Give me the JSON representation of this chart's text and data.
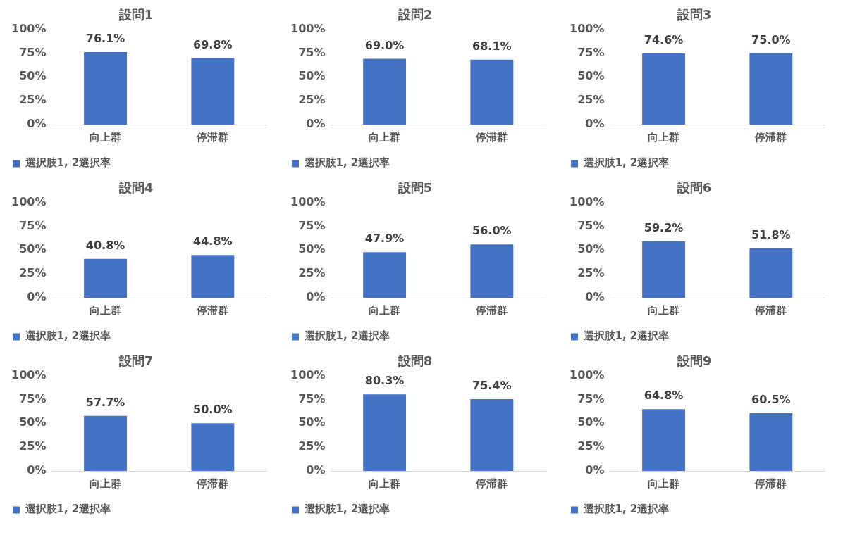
{
  "chart_data": [
    {
      "type": "bar",
      "title": "設問1",
      "categories": [
        "向上群",
        "停滞群"
      ],
      "series": [
        {
          "name": "選択肢1, 2選択率",
          "color": "#4472c4",
          "values": [
            76.1,
            69.8
          ],
          "value_labels": [
            "76.1%",
            "69.8%"
          ]
        }
      ],
      "ylim": [
        0,
        100
      ],
      "yticks": [
        {
          "value": 0,
          "label": "0%"
        },
        {
          "value": 25,
          "label": "25%"
        },
        {
          "value": 50,
          "label": "50%"
        },
        {
          "value": 75,
          "label": "75%"
        },
        {
          "value": 100,
          "label": "100%"
        }
      ],
      "legend": "bottom left",
      "grid": false
    },
    {
      "type": "bar",
      "title": "設問2",
      "categories": [
        "向上群",
        "停滞群"
      ],
      "series": [
        {
          "name": "選択肢1, 2選択率",
          "color": "#4472c4",
          "values": [
            69.0,
            68.1
          ],
          "value_labels": [
            "69.0%",
            "68.1%"
          ]
        }
      ],
      "ylim": [
        0,
        100
      ],
      "yticks": [
        {
          "value": 0,
          "label": "0%"
        },
        {
          "value": 25,
          "label": "25%"
        },
        {
          "value": 50,
          "label": "50%"
        },
        {
          "value": 75,
          "label": "75%"
        },
        {
          "value": 100,
          "label": "100%"
        }
      ],
      "legend": "bottom left",
      "grid": false
    },
    {
      "type": "bar",
      "title": "設問3",
      "categories": [
        "向上群",
        "停滞群"
      ],
      "series": [
        {
          "name": "選択肢1, 2選択率",
          "color": "#4472c4",
          "values": [
            74.6,
            75.0
          ],
          "value_labels": [
            "74.6%",
            "75.0%"
          ]
        }
      ],
      "ylim": [
        0,
        100
      ],
      "yticks": [
        {
          "value": 0,
          "label": "0%"
        },
        {
          "value": 25,
          "label": "25%"
        },
        {
          "value": 50,
          "label": "50%"
        },
        {
          "value": 75,
          "label": "75%"
        },
        {
          "value": 100,
          "label": "100%"
        }
      ],
      "legend": "bottom left",
      "grid": false
    },
    {
      "type": "bar",
      "title": "設問4",
      "categories": [
        "向上群",
        "停滞群"
      ],
      "series": [
        {
          "name": "選択肢1, 2選択率",
          "color": "#4472c4",
          "values": [
            40.8,
            44.8
          ],
          "value_labels": [
            "40.8%",
            "44.8%"
          ]
        }
      ],
      "ylim": [
        0,
        100
      ],
      "yticks": [
        {
          "value": 0,
          "label": "0%"
        },
        {
          "value": 25,
          "label": "25%"
        },
        {
          "value": 50,
          "label": "50%"
        },
        {
          "value": 75,
          "label": "75%"
        },
        {
          "value": 100,
          "label": "100%"
        }
      ],
      "legend": "bottom left",
      "grid": false
    },
    {
      "type": "bar",
      "title": "設問5",
      "categories": [
        "向上群",
        "停滞群"
      ],
      "series": [
        {
          "name": "選択肢1, 2選択率",
          "color": "#4472c4",
          "values": [
            47.9,
            56.0
          ],
          "value_labels": [
            "47.9%",
            "56.0%"
          ]
        }
      ],
      "ylim": [
        0,
        100
      ],
      "yticks": [
        {
          "value": 0,
          "label": "0%"
        },
        {
          "value": 25,
          "label": "25%"
        },
        {
          "value": 50,
          "label": "50%"
        },
        {
          "value": 75,
          "label": "75%"
        },
        {
          "value": 100,
          "label": "100%"
        }
      ],
      "legend": "bottom left",
      "grid": false
    },
    {
      "type": "bar",
      "title": "設問6",
      "categories": [
        "向上群",
        "停滞群"
      ],
      "series": [
        {
          "name": "選択肢1, 2選択率",
          "color": "#4472c4",
          "values": [
            59.2,
            51.8
          ],
          "value_labels": [
            "59.2%",
            "51.8%"
          ]
        }
      ],
      "ylim": [
        0,
        100
      ],
      "yticks": [
        {
          "value": 0,
          "label": "0%"
        },
        {
          "value": 25,
          "label": "25%"
        },
        {
          "value": 50,
          "label": "50%"
        },
        {
          "value": 75,
          "label": "75%"
        },
        {
          "value": 100,
          "label": "100%"
        }
      ],
      "legend": "bottom left",
      "grid": false
    },
    {
      "type": "bar",
      "title": "設問7",
      "categories": [
        "向上群",
        "停滞群"
      ],
      "series": [
        {
          "name": "選択肢1, 2選択率",
          "color": "#4472c4",
          "values": [
            57.7,
            50.0
          ],
          "value_labels": [
            "57.7%",
            "50.0%"
          ]
        }
      ],
      "ylim": [
        0,
        100
      ],
      "yticks": [
        {
          "value": 0,
          "label": "0%"
        },
        {
          "value": 25,
          "label": "25%"
        },
        {
          "value": 50,
          "label": "50%"
        },
        {
          "value": 75,
          "label": "75%"
        },
        {
          "value": 100,
          "label": "100%"
        }
      ],
      "legend": "bottom left",
      "grid": false
    },
    {
      "type": "bar",
      "title": "設問8",
      "categories": [
        "向上群",
        "停滞群"
      ],
      "series": [
        {
          "name": "選択肢1, 2選択率",
          "color": "#4472c4",
          "values": [
            80.3,
            75.4
          ],
          "value_labels": [
            "80.3%",
            "75.4%"
          ]
        }
      ],
      "ylim": [
        0,
        100
      ],
      "yticks": [
        {
          "value": 0,
          "label": "0%"
        },
        {
          "value": 25,
          "label": "25%"
        },
        {
          "value": 50,
          "label": "50%"
        },
        {
          "value": 75,
          "label": "75%"
        },
        {
          "value": 100,
          "label": "100%"
        }
      ],
      "legend": "bottom left",
      "grid": false
    },
    {
      "type": "bar",
      "title": "設問9",
      "categories": [
        "向上群",
        "停滞群"
      ],
      "series": [
        {
          "name": "選択肢1, 2選択率",
          "color": "#4472c4",
          "values": [
            64.8,
            60.5
          ],
          "value_labels": [
            "64.8%",
            "60.5%"
          ]
        }
      ],
      "ylim": [
        0,
        100
      ],
      "yticks": [
        {
          "value": 0,
          "label": "0%"
        },
        {
          "value": 25,
          "label": "25%"
        },
        {
          "value": 50,
          "label": "50%"
        },
        {
          "value": 75,
          "label": "75%"
        },
        {
          "value": 100,
          "label": "100%"
        }
      ],
      "legend": "bottom left",
      "grid": false
    }
  ]
}
